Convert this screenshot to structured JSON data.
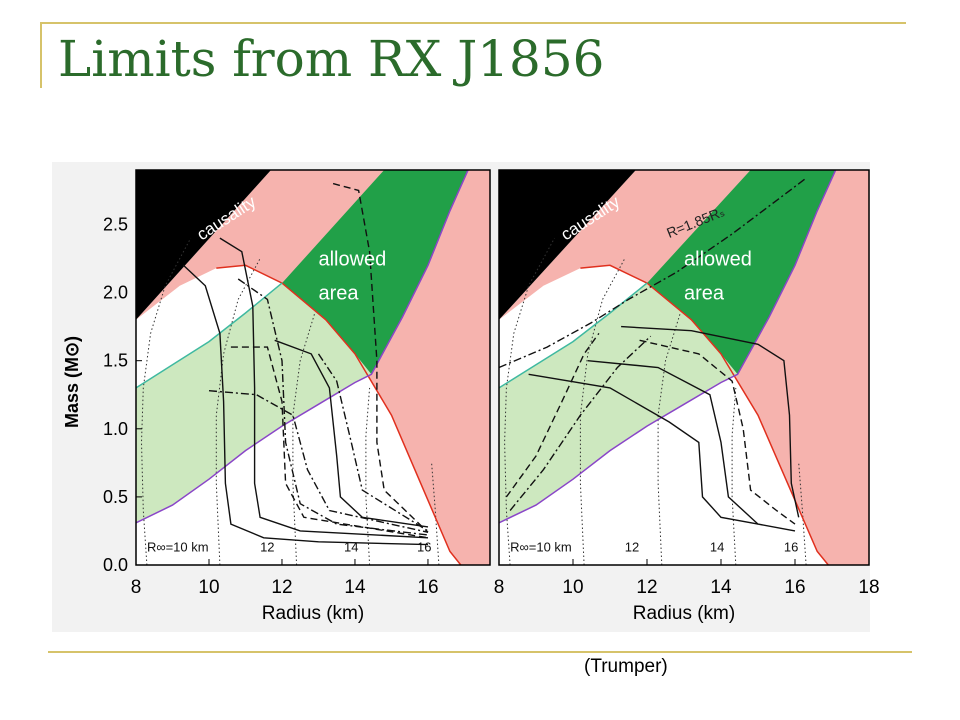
{
  "slide": {
    "title": "Limits from RX J1856",
    "credit": "(Trumper)"
  },
  "colors": {
    "title": "#2b6b2b",
    "rule": "#d6c36a",
    "causality": "#000000",
    "excluded": "#f6b3ae",
    "allowed": "#21a048",
    "light_green": "#cde8bf",
    "red_curve": "#e0301e",
    "purple_curve": "#8a46c8",
    "teal_curve": "#3fb9a0"
  },
  "chart_data": [
    {
      "type": "line",
      "panel": "left",
      "xlabel": "Radius (km)",
      "ylabel": "Mass (M⊙)",
      "xlim": [
        8,
        17.7
      ],
      "ylim": [
        0,
        2.9
      ],
      "xticks": [
        8,
        10,
        12,
        14,
        16
      ],
      "yticks": [
        0.0,
        0.5,
        1.0,
        1.5,
        2.0,
        2.5
      ],
      "ytick_labels": [
        "0.0",
        "0.5",
        "1.0",
        "1.5",
        "2.0",
        "2.5"
      ],
      "region_labels": {
        "causality": "causality",
        "allowed": [
          "allowed",
          "area"
        ]
      },
      "r_inf_labels": [
        "R∞=10 km",
        "12",
        "14",
        "16"
      ],
      "regions": {
        "causality": [
          [
            8,
            1.8
          ],
          [
            11.7,
            2.9
          ],
          [
            8,
            2.9
          ]
        ],
        "allowed": [
          [
            12,
            2.07
          ],
          [
            13.2,
            1.8
          ],
          [
            14,
            1.55
          ],
          [
            14.45,
            1.4
          ],
          [
            15.3,
            1.82
          ],
          [
            16,
            2.2
          ],
          [
            16.6,
            2.6
          ],
          [
            17.1,
            2.9
          ],
          [
            14.8,
            2.9
          ]
        ],
        "redline": [
          [
            10.2,
            2.18
          ],
          [
            11,
            2.2
          ],
          [
            12,
            2.07
          ],
          [
            13.2,
            1.8
          ],
          [
            14,
            1.55
          ],
          [
            15,
            1.1
          ],
          [
            15.8,
            0.6
          ],
          [
            16.6,
            0.1
          ],
          [
            16.9,
            0
          ]
        ],
        "purpleline": [
          [
            8,
            0.31
          ],
          [
            9,
            0.44
          ],
          [
            10,
            0.63
          ],
          [
            11,
            0.84
          ],
          [
            12,
            1.02
          ],
          [
            13,
            1.18
          ],
          [
            14,
            1.34
          ],
          [
            14.45,
            1.4
          ],
          [
            15.3,
            1.82
          ],
          [
            16,
            2.2
          ],
          [
            16.6,
            2.6
          ],
          [
            17.1,
            2.9
          ]
        ],
        "tealline": [
          [
            8,
            1.3
          ],
          [
            9,
            1.47
          ],
          [
            10,
            1.64
          ],
          [
            11,
            1.85
          ],
          [
            12,
            2.07
          ]
        ]
      },
      "eos_curves": [
        {
          "style": "solid",
          "points": [
            [
              9.3,
              2.2
            ],
            [
              9.9,
              2.05
            ],
            [
              10.3,
              1.7
            ],
            [
              10.4,
              1.2
            ],
            [
              10.45,
              0.6
            ],
            [
              10.6,
              0.3
            ],
            [
              11.5,
              0.2
            ],
            [
              13,
              0.17
            ],
            [
              16,
              0.15
            ]
          ]
        },
        {
          "style": "solid",
          "points": [
            [
              10.3,
              2.4
            ],
            [
              10.9,
              2.3
            ],
            [
              11.2,
              1.9
            ],
            [
              11.25,
              1.3
            ],
            [
              11.25,
              0.6
            ],
            [
              11.4,
              0.35
            ],
            [
              12.5,
              0.25
            ],
            [
              16,
              0.2
            ]
          ]
        },
        {
          "style": "solid",
          "points": [
            [
              11.8,
              1.65
            ],
            [
              12.8,
              1.55
            ],
            [
              13.3,
              1.3
            ],
            [
              13.5,
              0.8
            ],
            [
              13.6,
              0.5
            ],
            [
              14.2,
              0.35
            ],
            [
              16,
              0.28
            ]
          ]
        },
        {
          "style": "dashed",
          "points": [
            [
              13.4,
              2.8
            ],
            [
              14.1,
              2.75
            ],
            [
              14.4,
              2.3
            ],
            [
              14.6,
              1.5
            ],
            [
              14.6,
              0.9
            ],
            [
              14.8,
              0.55
            ],
            [
              16,
              0.24
            ]
          ]
        },
        {
          "style": "dashed",
          "points": [
            [
              10.6,
              1.6
            ],
            [
              11.6,
              1.6
            ],
            [
              12,
              1.2
            ],
            [
              12.1,
              0.6
            ],
            [
              12.6,
              0.35
            ],
            [
              16,
              0.2
            ]
          ]
        },
        {
          "style": "dashdot",
          "points": [
            [
              10.8,
              2.1
            ],
            [
              11.6,
              1.95
            ],
            [
              12,
              1.5
            ],
            [
              12.1,
              0.9
            ],
            [
              12.5,
              0.45
            ],
            [
              13.5,
              0.3
            ],
            [
              16,
              0.22
            ]
          ]
        },
        {
          "style": "dashdot",
          "points": [
            [
              10,
              1.28
            ],
            [
              11.3,
              1.25
            ],
            [
              12.3,
              1.1
            ],
            [
              12.7,
              0.7
            ],
            [
              13.3,
              0.4
            ],
            [
              16,
              0.24
            ]
          ]
        },
        {
          "style": "dashdot",
          "points": [
            [
              13,
              1.55
            ],
            [
              13.5,
              1.35
            ],
            [
              13.9,
              0.9
            ],
            [
              14.2,
              0.55
            ],
            [
              16,
              0.25
            ]
          ]
        }
      ],
      "r_inf_curves": [
        [
          [
            8.3,
            0
          ],
          [
            8.2,
            0.4
          ],
          [
            8.15,
            0.9
          ],
          [
            8.2,
            1.3
          ],
          [
            8.4,
            1.7
          ],
          [
            8.8,
            2.05
          ],
          [
            9.5,
            2.4
          ]
        ],
        [
          [
            10.3,
            0
          ],
          [
            10.2,
            0.6
          ],
          [
            10.2,
            1.1
          ],
          [
            10.4,
            1.55
          ],
          [
            10.8,
            1.95
          ],
          [
            11.4,
            2.25
          ]
        ],
        [
          [
            12.4,
            0
          ],
          [
            12.3,
            0.6
          ],
          [
            12.3,
            1.1
          ],
          [
            12.5,
            1.5
          ],
          [
            12.9,
            1.85
          ]
        ],
        [
          [
            14.4,
            0
          ],
          [
            14.3,
            0.5
          ],
          [
            14.3,
            0.95
          ],
          [
            14.4,
            1.3
          ]
        ],
        [
          [
            16.3,
            0
          ],
          [
            16.2,
            0.4
          ],
          [
            16.1,
            0.75
          ]
        ]
      ]
    },
    {
      "type": "line",
      "panel": "right",
      "xlabel": "Radius (km)",
      "ylabel": "",
      "xlim": [
        8,
        18
      ],
      "ylim": [
        0,
        2.9
      ],
      "xticks": [
        8,
        10,
        12,
        14,
        16,
        18
      ],
      "region_labels": {
        "causality": "causality",
        "allowed": [
          "allowed",
          "area"
        ],
        "line": "R=1.85Rₛ"
      },
      "r_inf_labels": [
        "R∞=10 km",
        "12",
        "14",
        "16"
      ],
      "regions": {
        "causality": [
          [
            8,
            1.8
          ],
          [
            11.7,
            2.9
          ],
          [
            8,
            2.9
          ]
        ],
        "allowed": [
          [
            12,
            2.07
          ],
          [
            13.2,
            1.8
          ],
          [
            14,
            1.55
          ],
          [
            14.45,
            1.4
          ],
          [
            15.3,
            1.82
          ],
          [
            16,
            2.2
          ],
          [
            16.6,
            2.6
          ],
          [
            17.1,
            2.9
          ],
          [
            14.8,
            2.9
          ]
        ],
        "redline": [
          [
            10.2,
            2.18
          ],
          [
            11,
            2.2
          ],
          [
            12,
            2.07
          ],
          [
            13.2,
            1.8
          ],
          [
            14,
            1.55
          ],
          [
            15,
            1.1
          ],
          [
            15.8,
            0.6
          ],
          [
            16.6,
            0.1
          ],
          [
            16.9,
            0
          ]
        ],
        "purpleline": [
          [
            8,
            0.31
          ],
          [
            9,
            0.44
          ],
          [
            10,
            0.63
          ],
          [
            11,
            0.84
          ],
          [
            12,
            1.02
          ],
          [
            13,
            1.18
          ],
          [
            14,
            1.34
          ],
          [
            14.45,
            1.4
          ],
          [
            15.3,
            1.82
          ],
          [
            16,
            2.2
          ],
          [
            16.6,
            2.6
          ],
          [
            17.1,
            2.9
          ]
        ],
        "tealline": [
          [
            8,
            1.3
          ],
          [
            9,
            1.47
          ],
          [
            10,
            1.64
          ],
          [
            11,
            1.85
          ],
          [
            12,
            2.07
          ]
        ]
      },
      "eos_curves": [
        {
          "style": "solid",
          "points": [
            [
              11.3,
              1.75
            ],
            [
              13.2,
              1.72
            ],
            [
              15,
              1.62
            ],
            [
              15.7,
              1.5
            ],
            [
              15.85,
              1.1
            ],
            [
              15.9,
              0.6
            ],
            [
              16.1,
              0.35
            ]
          ]
        },
        {
          "style": "solid",
          "points": [
            [
              8.8,
              1.4
            ],
            [
              11,
              1.3
            ],
            [
              12.6,
              1.05
            ],
            [
              13.4,
              0.9
            ],
            [
              13.5,
              0.5
            ],
            [
              14,
              0.35
            ],
            [
              15,
              0.3
            ]
          ]
        },
        {
          "style": "solid",
          "points": [
            [
              10.4,
              1.5
            ],
            [
              12.3,
              1.45
            ],
            [
              13.7,
              1.25
            ],
            [
              14,
              0.9
            ],
            [
              14.2,
              0.5
            ],
            [
              15,
              0.3
            ],
            [
              16,
              0.25
            ]
          ]
        },
        {
          "style": "dashed",
          "points": [
            [
              11.8,
              1.65
            ],
            [
              13.4,
              1.55
            ],
            [
              14.3,
              1.35
            ],
            [
              14.6,
              1.0
            ],
            [
              14.8,
              0.55
            ],
            [
              15.5,
              0.4
            ],
            [
              16,
              0.3
            ]
          ]
        },
        {
          "style": "dashed",
          "points": [
            [
              8.2,
              0.5
            ],
            [
              9,
              0.8
            ],
            [
              9.7,
              1.2
            ],
            [
              10.3,
              1.55
            ],
            [
              10.7,
              1.7
            ]
          ]
        },
        {
          "style": "dashdot",
          "points": [
            [
              8.3,
              0.4
            ],
            [
              9.2,
              0.7
            ],
            [
              10.2,
              1.1
            ],
            [
              11.2,
              1.45
            ],
            [
              12.1,
              1.68
            ]
          ]
        },
        {
          "style": "dashdot",
          "points": [
            [
              8,
              1.45
            ],
            [
              9.3,
              1.6
            ],
            [
              10.5,
              1.78
            ],
            [
              11.5,
              1.95
            ],
            [
              12.8,
              2.15
            ],
            [
              14.3,
              2.43
            ],
            [
              16.3,
              2.84
            ]
          ]
        }
      ],
      "r_inf_curves": [
        [
          [
            8.3,
            0
          ],
          [
            8.2,
            0.4
          ],
          [
            8.15,
            0.9
          ],
          [
            8.2,
            1.3
          ],
          [
            8.4,
            1.7
          ],
          [
            8.8,
            2.05
          ],
          [
            9.5,
            2.4
          ]
        ],
        [
          [
            10.3,
            0
          ],
          [
            10.2,
            0.6
          ],
          [
            10.2,
            1.1
          ],
          [
            10.4,
            1.55
          ],
          [
            10.8,
            1.95
          ],
          [
            11.4,
            2.25
          ]
        ],
        [
          [
            12.4,
            0
          ],
          [
            12.3,
            0.6
          ],
          [
            12.3,
            1.1
          ],
          [
            12.5,
            1.5
          ],
          [
            12.9,
            1.85
          ]
        ],
        [
          [
            14.4,
            0
          ],
          [
            14.3,
            0.5
          ],
          [
            14.3,
            0.95
          ],
          [
            14.4,
            1.3
          ]
        ],
        [
          [
            16.3,
            0
          ],
          [
            16.2,
            0.4
          ],
          [
            16.1,
            0.75
          ]
        ]
      ]
    }
  ]
}
